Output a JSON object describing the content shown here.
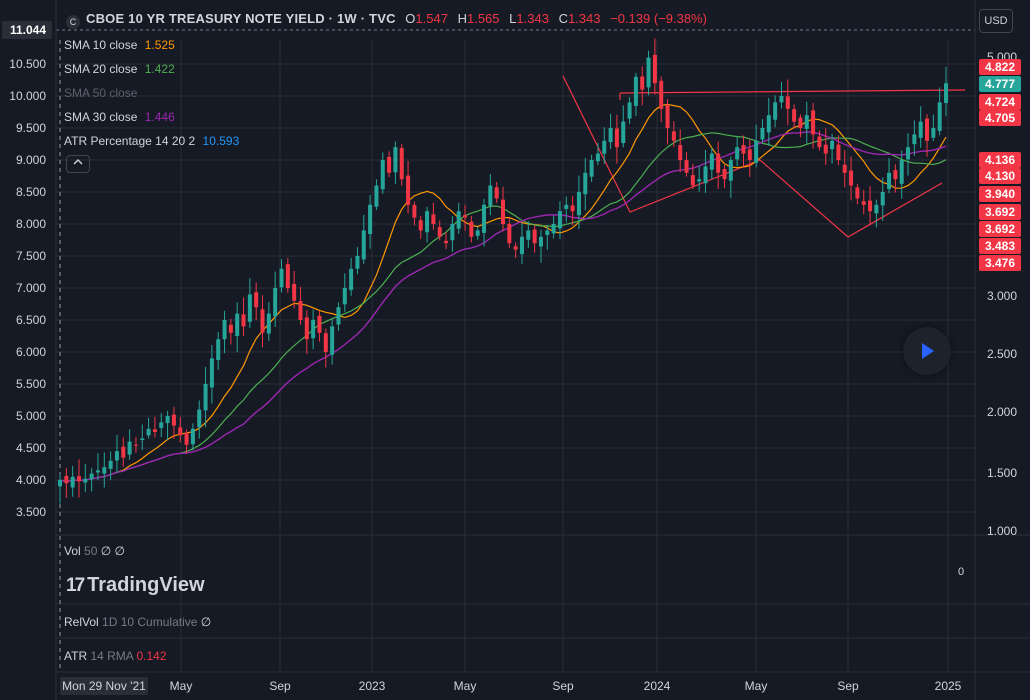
{
  "header": {
    "symbol_icon": "C",
    "title": "CBOE 10 YR TREASURY NOTE YIELD · 1W · TVC",
    "open_label": "O",
    "open": "1.547",
    "high_label": "H",
    "high": "1.565",
    "low_label": "L",
    "low": "1.343",
    "close_label": "C",
    "close": "1.343",
    "change": "−0.139 (−9.38%)",
    "currency_button": "USD"
  },
  "legend": [
    {
      "name": "SMA",
      "params": "10 close",
      "value": "1.525",
      "color": "#ff9800",
      "dimmed": false
    },
    {
      "name": "SMA",
      "params": "20 close",
      "value": "1.422",
      "color": "#4caf50",
      "dimmed": false
    },
    {
      "name": "SMA 50 close",
      "params": "",
      "value": "",
      "color": "#5d606b",
      "dimmed": true
    },
    {
      "name": "SMA",
      "params": "30 close",
      "value": "1.446",
      "color": "#9c27b0",
      "dimmed": false
    },
    {
      "name": "ATR Percentage",
      "params": "14 20 2",
      "value": "10.593",
      "color": "#2196f3",
      "dimmed": false
    }
  ],
  "collapse_icon": "chevron-up-icon",
  "play_icon": "play-icon",
  "panes": {
    "vol_label": "Vol",
    "vol_params": "50",
    "vol_values": "∅ ∅",
    "relvol_label": "RelVol",
    "relvol_params": "1D 10 Cumulative",
    "relvol_value": "∅",
    "atr_label": "ATR",
    "atr_params": "14 RMA",
    "atr_value": "0.142",
    "vol_axis_tick": "0"
  },
  "watermark": {
    "mark": "17",
    "text": "TradingView"
  },
  "chart_data": {
    "type": "candlestick",
    "left_axis": {
      "ticks": [
        "10.500",
        "10.000",
        "9.500",
        "9.000",
        "8.500",
        "8.000",
        "7.500",
        "7.000",
        "6.500",
        "6.000",
        "5.500",
        "5.000",
        "4.500",
        "4.000",
        "3.500"
      ],
      "range": [
        3.0,
        11.044
      ],
      "current_label": "11.044"
    },
    "right_axis": {
      "scale": "log",
      "ticks": [
        "5.000",
        "3.000",
        "2.500",
        "2.000",
        "1.500",
        "1.000"
      ],
      "range": [
        0.9,
        5.2
      ]
    },
    "x_labels": [
      "Mon 29 Nov '21",
      "May",
      "Sep",
      "2023",
      "May",
      "Sep",
      "2024",
      "May",
      "Sep",
      "2025"
    ],
    "price_labels": [
      {
        "text": "4.822",
        "color": "#f23645"
      },
      {
        "text": "4.777",
        "color": "#26a69a"
      },
      {
        "text": "4.724",
        "color": "#f23645"
      },
      {
        "text": "4.705",
        "color": "#f23645"
      },
      {
        "text": "4.136",
        "color": "#f23645"
      },
      {
        "text": "4.130",
        "color": "#f23645"
      },
      {
        "text": "3.940",
        "color": "#f23645"
      },
      {
        "text": "3.692",
        "color": "#f23645"
      },
      {
        "text": "3.692",
        "color": "#f23645"
      },
      {
        "text": "3.483",
        "color": "#f23645"
      },
      {
        "text": "3.476",
        "color": "#f23645"
      }
    ],
    "colors": {
      "up": "#26a69a",
      "down": "#f23645",
      "sma10": "#ff9800",
      "sma20": "#4caf50",
      "sma30": "#9c27b0",
      "trend": "#f23645",
      "bg": "#161a25",
      "grid": "#2a2e39",
      "text": "#d1d4dc"
    },
    "closes": [
      4.0,
      3.95,
      4.05,
      3.98,
      4.02,
      4.1,
      4.15,
      4.2,
      4.3,
      4.45,
      4.35,
      4.6,
      4.55,
      4.65,
      4.8,
      4.75,
      4.9,
      5.0,
      4.85,
      4.7,
      4.55,
      4.8,
      5.1,
      5.5,
      5.9,
      6.2,
      6.5,
      6.3,
      6.6,
      6.4,
      6.9,
      6.7,
      6.3,
      6.6,
      7.0,
      7.3,
      7.0,
      6.8,
      6.5,
      6.2,
      6.5,
      6.3,
      6.0,
      6.4,
      6.7,
      7.0,
      7.3,
      7.5,
      7.9,
      8.3,
      8.6,
      9.0,
      8.8,
      9.2,
      8.7,
      8.3,
      8.1,
      7.9,
      8.2,
      8.0,
      7.8,
      7.7,
      8.0,
      8.2,
      8.1,
      7.8,
      7.9,
      8.3,
      8.6,
      8.4,
      8.0,
      7.7,
      7.6,
      7.8,
      7.9,
      7.7,
      7.8,
      7.9,
      8.0,
      8.2,
      8.3,
      8.2,
      8.5,
      8.8,
      9.0,
      9.1,
      9.3,
      9.5,
      9.2,
      9.6,
      9.9,
      10.3,
      10.1,
      10.6,
      10.2,
      9.8,
      9.5,
      9.3,
      9.0,
      8.8,
      8.6,
      8.7,
      8.9,
      9.1,
      8.8,
      8.7,
      9.0,
      9.2,
      9.1,
      9.0,
      9.3,
      9.5,
      9.7,
      9.9,
      10.0,
      9.8,
      9.6,
      9.5,
      9.7,
      9.4,
      9.2,
      9.1,
      9.3,
      9.0,
      8.8,
      8.6,
      8.4,
      8.3,
      8.2,
      8.3,
      8.5,
      8.8,
      8.7,
      9.0,
      9.2,
      9.4,
      9.6,
      9.3,
      9.5,
      9.9,
      10.2
    ]
  }
}
